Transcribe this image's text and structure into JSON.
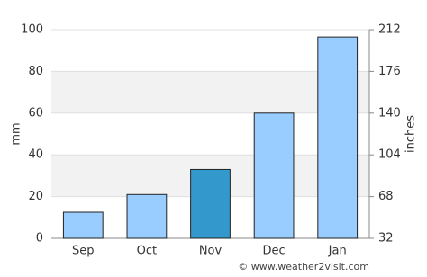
{
  "chart_data": {
    "type": "bar",
    "categories": [
      "Sep",
      "Oct",
      "Nov",
      "Dec",
      "Jan"
    ],
    "series": [
      {
        "values": [
          12.5,
          21,
          33,
          60,
          96.5
        ],
        "colors": [
          "#99ccff",
          "#99ccff",
          "#3399cc",
          "#99ccff",
          "#99ccff"
        ]
      }
    ],
    "ylabel": "mm",
    "y2label": "inches",
    "ylim": [
      0,
      100
    ],
    "yticks": [
      0,
      20,
      40,
      60,
      80,
      100
    ],
    "y2lim": [
      32,
      212
    ],
    "y2ticks": [
      32,
      68,
      104,
      140,
      176,
      212
    ],
    "grid": true,
    "footer": "© www.weather2visit.com"
  }
}
